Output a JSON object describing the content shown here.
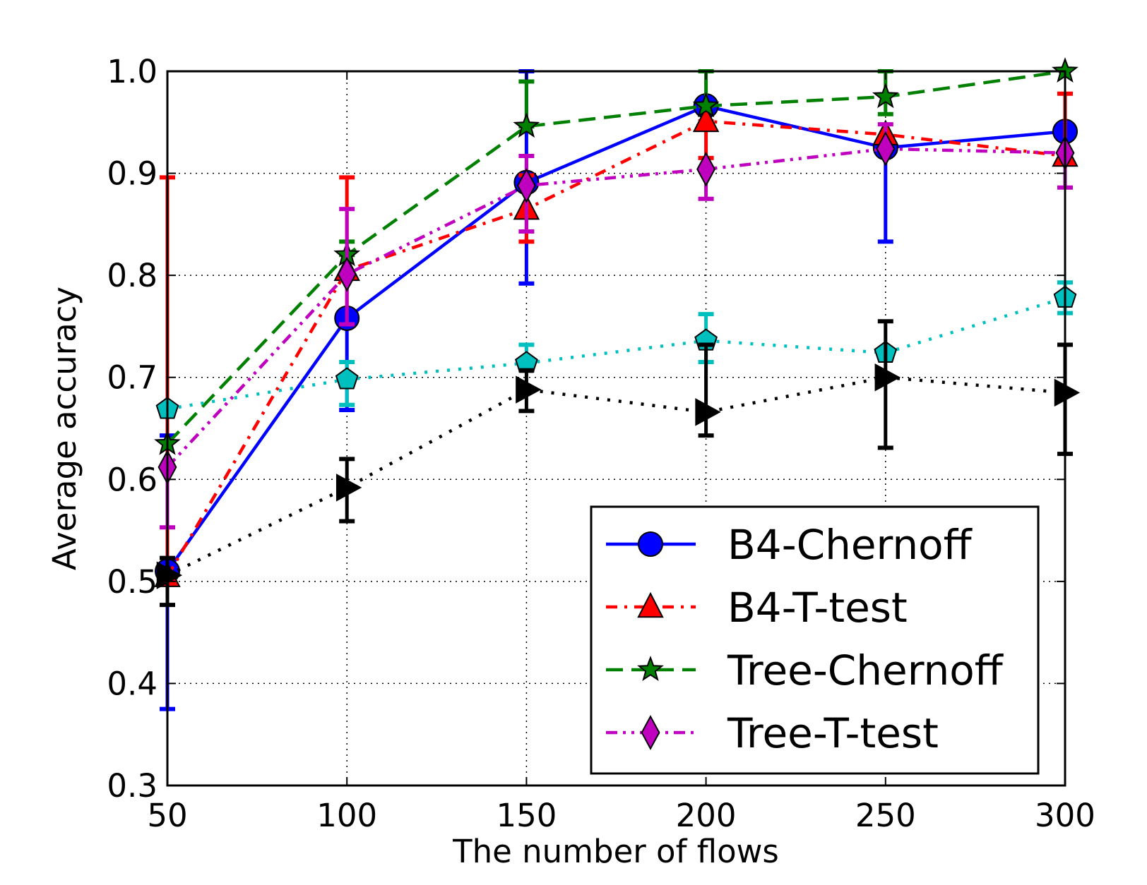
{
  "chart_data": {
    "type": "line",
    "title": "",
    "xlabel": "The number of flows",
    "ylabel": "Average accuracy",
    "x": [
      50,
      100,
      150,
      200,
      250,
      300
    ],
    "xlim": [
      50,
      300
    ],
    "ylim": [
      0.3,
      1.0
    ],
    "xticks": [
      "50",
      "100",
      "150",
      "200",
      "250",
      "300"
    ],
    "yticks": [
      "0.3",
      "0.4",
      "0.5",
      "0.6",
      "0.7",
      "0.8",
      "0.9",
      "1.0"
    ],
    "grid": true,
    "legend_position": "lower-right",
    "series": [
      {
        "name": "B4-Chernoff",
        "color": "#0000ff",
        "line_style": "solid",
        "marker": "circle",
        "in_legend": true,
        "values": [
          0.51,
          0.758,
          0.891,
          0.966,
          0.925,
          0.941
        ],
        "err_low": [
          0.375,
          0.668,
          0.792,
          0.966,
          0.833,
          0.941
        ],
        "err_high": [
          0.643,
          0.758,
          1.0,
          0.966,
          0.925,
          0.941
        ]
      },
      {
        "name": "B4-T-test",
        "color": "#ff0000",
        "line_style": "dashdot",
        "marker": "triangle",
        "in_legend": true,
        "values": [
          0.505,
          0.805,
          0.865,
          0.951,
          0.938,
          0.917
        ],
        "err_low": [
          0.505,
          0.752,
          0.833,
          0.915,
          0.938,
          0.917
        ],
        "err_high": [
          0.896,
          0.896,
          0.898,
          0.951,
          0.938,
          0.978
        ]
      },
      {
        "name": "Tree-Chernoff",
        "color": "#008000",
        "line_style": "dashed",
        "marker": "star",
        "in_legend": true,
        "values": [
          0.635,
          0.82,
          0.946,
          0.966,
          0.975,
          1.0
        ],
        "err_low": [
          0.635,
          0.82,
          0.946,
          0.966,
          0.958,
          1.0
        ],
        "err_high": [
          0.635,
          0.833,
          0.99,
          1.0,
          1.0,
          1.0
        ]
      },
      {
        "name": "Tree-T-test",
        "color": "#bf00bf",
        "line_style": "dashdotdot",
        "marker": "diamond",
        "in_legend": true,
        "values": [
          0.612,
          0.801,
          0.888,
          0.904,
          0.924,
          0.92
        ],
        "err_low": [
          0.553,
          0.752,
          0.843,
          0.875,
          0.924,
          0.886
        ],
        "err_high": [
          0.612,
          0.865,
          0.917,
          0.904,
          0.948,
          0.92
        ]
      },
      {
        "name": "",
        "color": "#00bfbf",
        "line_style": "dotted",
        "marker": "pentagon",
        "in_legend": false,
        "values": [
          0.669,
          0.698,
          0.714,
          0.736,
          0.724,
          0.778
        ],
        "err_low": [
          0.669,
          0.673,
          0.714,
          0.715,
          0.724,
          0.763
        ],
        "err_high": [
          0.669,
          0.715,
          0.732,
          0.762,
          0.724,
          0.793
        ]
      },
      {
        "name": "",
        "color": "#000000",
        "line_style": "dotted",
        "marker": "triangle-right",
        "in_legend": false,
        "values": [
          0.506,
          0.592,
          0.688,
          0.666,
          0.7,
          0.685
        ],
        "err_low": [
          0.477,
          0.559,
          0.667,
          0.643,
          0.631,
          0.625
        ],
        "err_high": [
          0.523,
          0.62,
          0.707,
          0.732,
          0.755,
          0.732
        ]
      }
    ]
  }
}
